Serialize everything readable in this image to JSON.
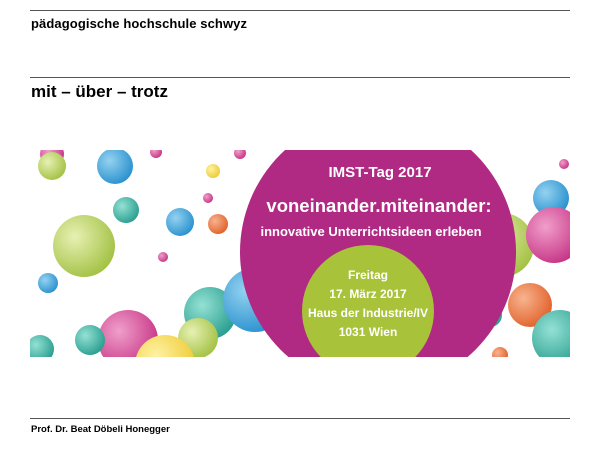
{
  "header": {
    "institution": "pädagogische hochschule schwyz"
  },
  "slide": {
    "title": "mit – über – trotz"
  },
  "banner": {
    "event_title": "IMST-Tag 2017",
    "headline": "voneinander.miteinander:",
    "subline": "innovative Unterrichtsideen erleben",
    "date_lines": [
      "Freitag",
      "17. März 2017",
      "Haus der Industrie/IV",
      "1031 Wien"
    ],
    "colors": {
      "magenta": "#b02a83",
      "lime": "#a8c23a",
      "orange": "#e8622a",
      "blue": "#2a9bd5",
      "teal": "#2aa89a",
      "yellow": "#f2d23a",
      "pink": "#d0408a"
    }
  },
  "footer": {
    "author": "Prof. Dr. Beat Döbeli Honegger"
  }
}
